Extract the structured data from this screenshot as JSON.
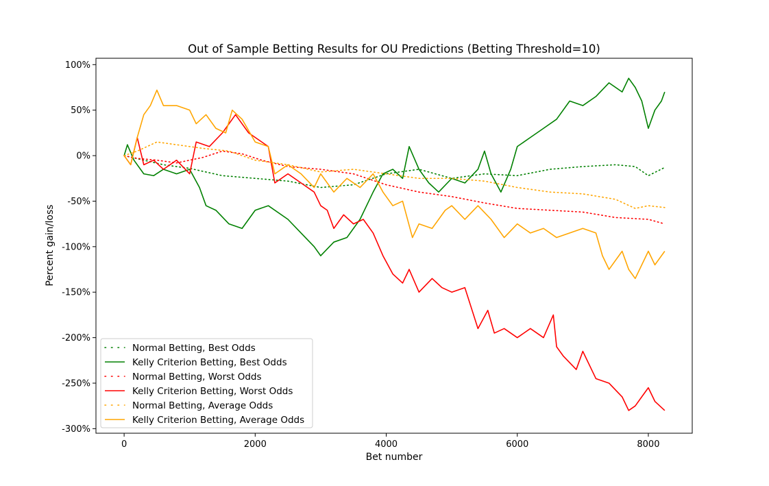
{
  "chart_data": {
    "type": "line",
    "title": "Out of Sample Betting Results for OU Predictions (Betting Threshold=10)",
    "xlabel": "Bet number",
    "ylabel": "Percent gain/loss",
    "xlim": [
      -430,
      8670
    ],
    "ylim": [
      -305,
      107
    ],
    "xticks": [
      0,
      2000,
      4000,
      6000,
      8000
    ],
    "xtick_labels": [
      "0",
      "2000",
      "4000",
      "6000",
      "8000"
    ],
    "yticks": [
      100,
      50,
      0,
      -50,
      -100,
      -150,
      -200,
      -250,
      -300
    ],
    "ytick_labels": [
      "100%",
      "50%",
      "0%",
      "-50%",
      "-100%",
      "-150%",
      "-200%",
      "-250%",
      "-300%"
    ],
    "grid": false,
    "legend_position": "lower-left",
    "series": [
      {
        "name": "Normal Betting, Best Odds",
        "color": "#008000",
        "style": "dotted",
        "x": [
          0,
          300,
          600,
          1000,
          1500,
          2000,
          2500,
          3000,
          3500,
          4000,
          4500,
          5000,
          5500,
          6000,
          6500,
          7000,
          7500,
          7800,
          8000,
          8250
        ],
        "y": [
          0,
          -5,
          -10,
          -14,
          -22,
          -25,
          -28,
          -35,
          -32,
          -20,
          -15,
          -25,
          -20,
          -22,
          -15,
          -12,
          -10,
          -12,
          -22,
          -13
        ]
      },
      {
        "name": "Kelly Criterion Betting, Best Odds",
        "color": "#008000",
        "style": "solid",
        "x": [
          0,
          50,
          150,
          300,
          450,
          600,
          800,
          1000,
          1150,
          1250,
          1400,
          1600,
          1800,
          2000,
          2200,
          2500,
          2700,
          2900,
          3000,
          3200,
          3400,
          3600,
          3800,
          3950,
          4100,
          4250,
          4350,
          4500,
          4650,
          4800,
          5000,
          5200,
          5400,
          5500,
          5600,
          5750,
          5900,
          6000,
          6200,
          6400,
          6600,
          6800,
          7000,
          7200,
          7400,
          7600,
          7700,
          7800,
          7900,
          8000,
          8100,
          8200,
          8250
        ],
        "y": [
          0,
          12,
          -5,
          -20,
          -22,
          -15,
          -20,
          -15,
          -35,
          -55,
          -60,
          -75,
          -80,
          -60,
          -55,
          -70,
          -85,
          -100,
          -110,
          -95,
          -90,
          -70,
          -40,
          -20,
          -15,
          -25,
          10,
          -15,
          -30,
          -40,
          -25,
          -30,
          -15,
          5,
          -20,
          -40,
          -15,
          10,
          20,
          30,
          40,
          60,
          55,
          65,
          80,
          70,
          85,
          75,
          60,
          30,
          50,
          60,
          70
        ]
      },
      {
        "name": "Normal Betting, Worst Odds",
        "color": "#ff0000",
        "style": "dotted",
        "x": [
          0,
          200,
          500,
          800,
          1200,
          1500,
          1800,
          2100,
          2500,
          3000,
          3500,
          4000,
          4500,
          5000,
          5500,
          6000,
          6500,
          7000,
          7500,
          8000,
          8250
        ],
        "y": [
          0,
          -3,
          -5,
          -8,
          -2,
          5,
          2,
          -5,
          -12,
          -15,
          -20,
          -32,
          -40,
          -45,
          -52,
          -58,
          -60,
          -62,
          -68,
          -70,
          -75
        ]
      },
      {
        "name": "Kelly Criterion Betting, Worst Odds",
        "color": "#ff0000",
        "style": "solid",
        "x": [
          0,
          100,
          200,
          300,
          450,
          600,
          800,
          1000,
          1100,
          1300,
          1500,
          1700,
          1900,
          2100,
          2200,
          2300,
          2500,
          2700,
          2900,
          3000,
          3100,
          3200,
          3350,
          3500,
          3650,
          3800,
          3950,
          4100,
          4250,
          4350,
          4500,
          4700,
          4850,
          5000,
          5200,
          5400,
          5550,
          5650,
          5800,
          6000,
          6200,
          6400,
          6550,
          6600,
          6700,
          6900,
          7000,
          7200,
          7400,
          7600,
          7700,
          7800,
          7900,
          8000,
          8100,
          8250
        ],
        "y": [
          0,
          -10,
          20,
          -10,
          -5,
          -15,
          -5,
          -20,
          15,
          10,
          25,
          45,
          25,
          15,
          10,
          -30,
          -20,
          -30,
          -40,
          -55,
          -60,
          -80,
          -65,
          -75,
          -70,
          -85,
          -110,
          -130,
          -140,
          -125,
          -150,
          -135,
          -145,
          -150,
          -145,
          -190,
          -170,
          -195,
          -190,
          -200,
          -190,
          -200,
          -175,
          -210,
          -220,
          -235,
          -215,
          -245,
          -250,
          -265,
          -280,
          -275,
          -265,
          -255,
          -270,
          -280
        ]
      },
      {
        "name": "Normal Betting, Average Odds",
        "color": "#ffa500",
        "style": "dotted",
        "x": [
          0,
          200,
          500,
          800,
          1200,
          1600,
          2000,
          2500,
          3000,
          3500,
          4000,
          4500,
          5000,
          5500,
          6000,
          6500,
          7000,
          7500,
          7800,
          8000,
          8250
        ],
        "y": [
          0,
          5,
          15,
          12,
          8,
          5,
          -5,
          -10,
          -18,
          -15,
          -20,
          -25,
          -25,
          -28,
          -35,
          -40,
          -42,
          -48,
          -58,
          -55,
          -57
        ]
      },
      {
        "name": "Kelly Criterion Betting, Average Odds",
        "color": "#ffa500",
        "style": "solid",
        "x": [
          0,
          100,
          200,
          300,
          400,
          500,
          600,
          800,
          1000,
          1100,
          1250,
          1400,
          1550,
          1650,
          1800,
          2000,
          2200,
          2300,
          2500,
          2700,
          2900,
          3000,
          3200,
          3400,
          3600,
          3800,
          3950,
          4100,
          4250,
          4400,
          4500,
          4700,
          4900,
          5000,
          5200,
          5400,
          5600,
          5800,
          6000,
          6200,
          6400,
          6600,
          6800,
          7000,
          7200,
          7300,
          7400,
          7600,
          7700,
          7800,
          8000,
          8100,
          8250
        ],
        "y": [
          0,
          -10,
          20,
          45,
          55,
          72,
          55,
          55,
          50,
          35,
          45,
          30,
          25,
          50,
          40,
          15,
          10,
          -20,
          -10,
          -20,
          -35,
          -20,
          -40,
          -25,
          -35,
          -20,
          -40,
          -55,
          -50,
          -90,
          -75,
          -80,
          -60,
          -55,
          -70,
          -55,
          -70,
          -90,
          -75,
          -85,
          -80,
          -90,
          -85,
          -80,
          -85,
          -110,
          -125,
          -105,
          -125,
          -135,
          -105,
          -120,
          -105
        ]
      }
    ]
  }
}
